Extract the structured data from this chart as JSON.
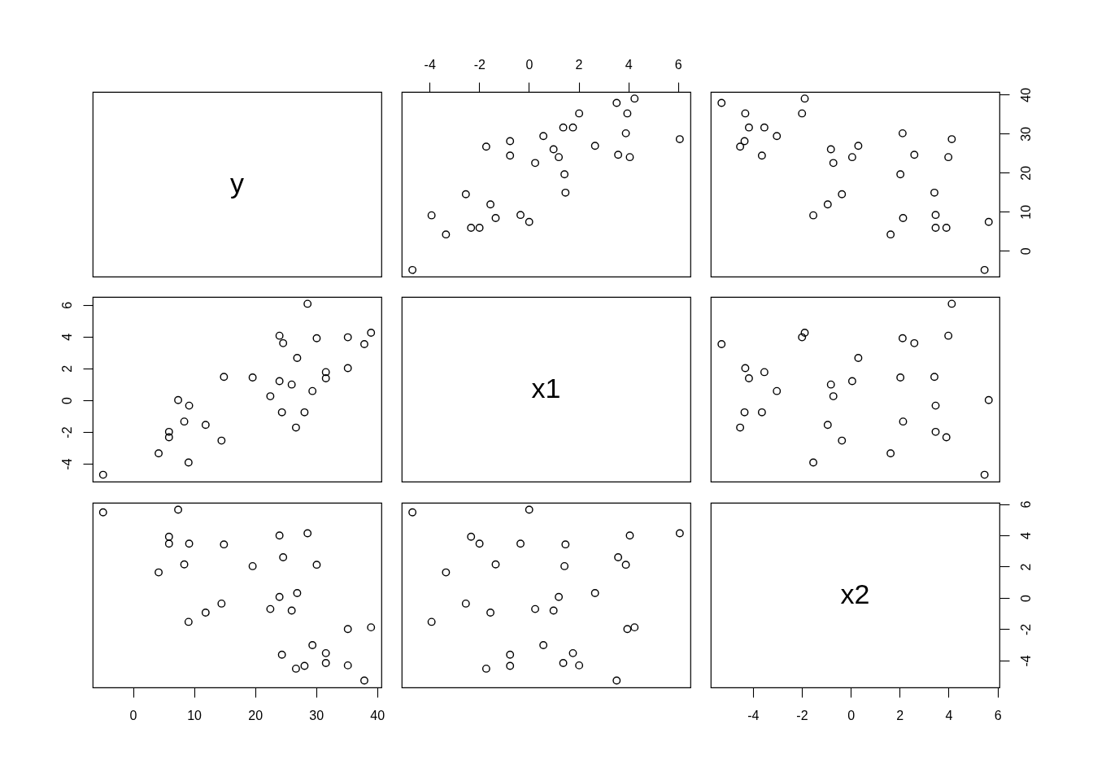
{
  "chart_data": [
    {
      "type": "other",
      "title": "y"
    },
    {
      "type": "scatter",
      "color": "#000000",
      "marker": "circle",
      "tick_labels": "x",
      "xlim": [
        -5.12,
        6.5
      ],
      "ylim": [
        -6.6,
        40.7
      ],
      "xticks": [
        -4,
        -2,
        0,
        2,
        4,
        6
      ],
      "x": [
        4.25,
        3.53,
        2.02,
        3.96,
        1.38,
        1.77,
        3.9,
        0.58,
        6.07,
        -0.76,
        -1.72,
        2.66,
        0.99,
        -0.76,
        3.59,
        1.2,
        4.06,
        0.25,
        1.43,
        1.47,
        -2.54,
        -1.55,
        -3.92,
        -1.34,
        -0.34,
        0.01,
        -2.33,
        -1.99,
        -3.34,
        -4.69
      ],
      "values": [
        39.0,
        37.9,
        35.2,
        35.2,
        31.6,
        31.6,
        30.1,
        29.4,
        28.6,
        28.1,
        26.7,
        26.9,
        26.0,
        24.4,
        24.6,
        24.0,
        24.0,
        22.5,
        19.6,
        14.9,
        14.5,
        11.9,
        9.1,
        8.4,
        9.2,
        7.4,
        5.9,
        5.9,
        4.2,
        -4.9
      ]
    },
    {
      "type": "scatter",
      "color": "#000000",
      "marker": "circle",
      "tick_labels": "y",
      "xlim": [
        -5.72,
        6.08
      ],
      "ylim": [
        -6.6,
        40.7
      ],
      "yticks": [
        0,
        10,
        20,
        30,
        40
      ],
      "x": [
        -1.88,
        -5.28,
        -4.31,
        -1.99,
        -4.16,
        -3.53,
        2.12,
        -3.02,
        4.13,
        -4.34,
        -4.52,
        0.31,
        -0.81,
        -3.63,
        2.6,
        0.06,
        3.99,
        -0.71,
        2.03,
        3.42,
        -0.36,
        -0.94,
        -1.53,
        2.14,
        3.47,
        5.64,
        3.91,
        3.47,
        1.63,
        5.47
      ],
      "values": [
        39.0,
        37.9,
        35.2,
        35.2,
        31.6,
        31.6,
        30.1,
        29.4,
        28.6,
        28.1,
        26.7,
        26.9,
        26.0,
        24.4,
        24.6,
        24.0,
        24.0,
        22.5,
        19.6,
        14.9,
        14.5,
        11.9,
        9.1,
        8.4,
        9.2,
        7.4,
        5.9,
        5.9,
        4.2,
        -4.9
      ]
    },
    {
      "type": "scatter",
      "color": "#000000",
      "marker": "circle",
      "tick_labels": "y",
      "xlim": [
        -6.6,
        40.7
      ],
      "ylim": [
        -5.12,
        6.5
      ],
      "yticks": [
        -4,
        -2,
        0,
        2,
        4,
        6
      ],
      "x": [
        39.0,
        37.9,
        35.2,
        35.2,
        31.6,
        31.6,
        30.1,
        29.4,
        28.6,
        28.1,
        26.7,
        26.9,
        26.0,
        24.4,
        24.6,
        24.0,
        24.0,
        22.5,
        19.6,
        14.9,
        14.5,
        11.9,
        9.1,
        8.4,
        9.2,
        7.4,
        5.9,
        5.9,
        4.2,
        -4.9
      ],
      "values": [
        4.25,
        3.53,
        2.02,
        3.96,
        1.38,
        1.77,
        3.9,
        0.58,
        6.07,
        -0.76,
        -1.72,
        2.66,
        0.99,
        -0.76,
        3.59,
        1.2,
        4.06,
        0.25,
        1.43,
        1.47,
        -2.54,
        -1.55,
        -3.92,
        -1.34,
        -0.34,
        0.01,
        -2.33,
        -1.99,
        -3.34,
        -4.69
      ]
    },
    {
      "type": "other",
      "title": "x1"
    },
    {
      "type": "scatter",
      "color": "#000000",
      "marker": "circle",
      "tick_labels": false,
      "xlim": [
        -5.72,
        6.08
      ],
      "ylim": [
        -5.12,
        6.5
      ],
      "x": [
        -1.88,
        -5.28,
        -4.31,
        -1.99,
        -4.16,
        -3.53,
        2.12,
        -3.02,
        4.13,
        -4.34,
        -4.52,
        0.31,
        -0.81,
        -3.63,
        2.6,
        0.06,
        3.99,
        -0.71,
        2.03,
        3.42,
        -0.36,
        -0.94,
        -1.53,
        2.14,
        3.47,
        5.64,
        3.91,
        3.47,
        1.63,
        5.47
      ],
      "values": [
        4.25,
        3.53,
        2.02,
        3.96,
        1.38,
        1.77,
        3.9,
        0.58,
        6.07,
        -0.76,
        -1.72,
        2.66,
        0.99,
        -0.76,
        3.59,
        1.2,
        4.06,
        0.25,
        1.43,
        1.47,
        -2.54,
        -1.55,
        -3.92,
        -1.34,
        -0.34,
        0.01,
        -2.33,
        -1.99,
        -3.34,
        -4.69
      ]
    },
    {
      "type": "scatter",
      "color": "#000000",
      "marker": "circle",
      "tick_labels": "x",
      "xlim": [
        -6.6,
        40.7
      ],
      "ylim": [
        -5.72,
        6.08
      ],
      "xticks": [
        0,
        10,
        20,
        30,
        40
      ],
      "x": [
        39.0,
        37.9,
        35.2,
        35.2,
        31.6,
        31.6,
        30.1,
        29.4,
        28.6,
        28.1,
        26.7,
        26.9,
        26.0,
        24.4,
        24.6,
        24.0,
        24.0,
        22.5,
        19.6,
        14.9,
        14.5,
        11.9,
        9.1,
        8.4,
        9.2,
        7.4,
        5.9,
        5.9,
        4.2,
        -4.9
      ],
      "values": [
        -1.88,
        -5.28,
        -4.31,
        -1.99,
        -4.16,
        -3.53,
        2.12,
        -3.02,
        4.13,
        -4.34,
        -4.52,
        0.31,
        -0.81,
        -3.63,
        2.6,
        0.06,
        3.99,
        -0.71,
        2.03,
        3.42,
        -0.36,
        -0.94,
        -1.53,
        2.14,
        3.47,
        5.64,
        3.91,
        3.47,
        1.63,
        5.47
      ]
    },
    {
      "type": "scatter",
      "color": "#000000",
      "marker": "circle",
      "tick_labels": false,
      "xlim": [
        -5.12,
        6.5
      ],
      "ylim": [
        -5.72,
        6.08
      ],
      "x": [
        4.25,
        3.53,
        2.02,
        3.96,
        1.38,
        1.77,
        3.9,
        0.58,
        6.07,
        -0.76,
        -1.72,
        2.66,
        0.99,
        -0.76,
        3.59,
        1.2,
        4.06,
        0.25,
        1.43,
        1.47,
        -2.54,
        -1.55,
        -3.92,
        -1.34,
        -0.34,
        0.01,
        -2.33,
        -1.99,
        -3.34,
        -4.69
      ],
      "values": [
        -1.88,
        -5.28,
        -4.31,
        -1.99,
        -4.16,
        -3.53,
        2.12,
        -3.02,
        4.13,
        -4.34,
        -4.52,
        0.31,
        -0.81,
        -3.63,
        2.6,
        0.06,
        3.99,
        -0.71,
        2.03,
        3.42,
        -0.36,
        -0.94,
        -1.53,
        2.14,
        3.47,
        5.64,
        3.91,
        3.47,
        1.63,
        5.47
      ]
    },
    {
      "type": "scatter",
      "title": "x2",
      "color": "#000000",
      "marker": "circle",
      "xlim": [
        -5.72,
        6.08
      ],
      "ylim": [
        -5.72,
        6.08
      ],
      "xticks": [
        -4,
        -2,
        0,
        2,
        4,
        6
      ],
      "yticks": [
        -4,
        -2,
        0,
        2,
        4,
        6
      ]
    }
  ]
}
